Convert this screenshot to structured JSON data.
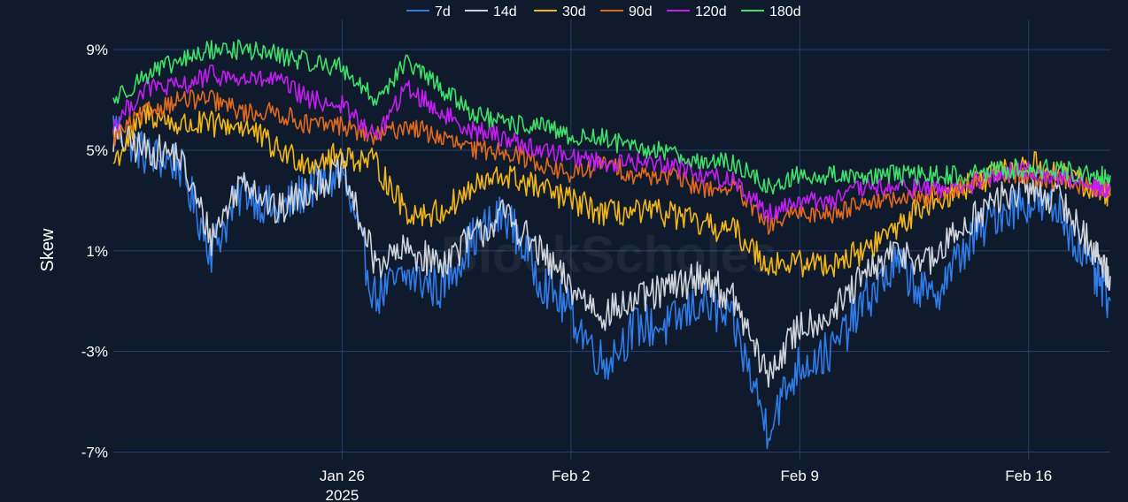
{
  "watermark": "BlockScholes",
  "chart_data": {
    "type": "line",
    "title": "",
    "xlabel": "",
    "ylabel": "Skew",
    "ylim": [
      -7.3,
      10.2
    ],
    "xlim": [
      "2025-01-19",
      "2025-02-18T12:00"
    ],
    "y_ticks": [
      {
        "value": 9,
        "label": "9%"
      },
      {
        "value": 5,
        "label": "5%"
      },
      {
        "value": 1,
        "label": "1%"
      },
      {
        "value": -3,
        "label": "-3%"
      },
      {
        "value": -7,
        "label": "-7%"
      }
    ],
    "x_ticks": [
      {
        "value": "2025-01-26",
        "label": "Jan 26",
        "sublabel": "2025"
      },
      {
        "value": "2025-02-02",
        "label": "Feb 2",
        "sublabel": ""
      },
      {
        "value": "2025-02-09",
        "label": "Feb 9",
        "sublabel": ""
      },
      {
        "value": "2025-02-16",
        "label": "Feb 16",
        "sublabel": ""
      }
    ],
    "grid": true,
    "legend_position": "top-center",
    "series": [
      {
        "name": "7d",
        "color": "#2f7be8",
        "x": [
          "2025-01-19",
          "2025-01-20",
          "2025-01-21",
          "2025-01-22",
          "2025-01-23",
          "2025-01-24",
          "2025-01-25",
          "2025-01-26",
          "2025-01-27",
          "2025-01-28",
          "2025-01-29",
          "2025-01-30",
          "2025-01-31",
          "2025-02-01",
          "2025-02-02",
          "2025-02-03",
          "2025-02-04",
          "2025-02-05",
          "2025-02-06",
          "2025-02-07",
          "2025-02-08",
          "2025-02-09",
          "2025-02-10",
          "2025-02-11",
          "2025-02-12",
          "2025-02-13",
          "2025-02-14",
          "2025-02-15",
          "2025-02-16",
          "2025-02-17",
          "2025-02-18",
          "2025-02-18T12:00"
        ],
        "values": [
          6.0,
          4.8,
          4.5,
          1.0,
          3.5,
          2.5,
          3.5,
          4.0,
          -0.8,
          0.0,
          -0.5,
          1.5,
          2.5,
          0.0,
          -1.5,
          -3.5,
          -2.0,
          -2.0,
          -1.0,
          -2.0,
          -6.0,
          -3.5,
          -3.0,
          -1.0,
          0.5,
          -1.0,
          1.0,
          2.5,
          3.0,
          2.5,
          0.0,
          -1.0
        ]
      },
      {
        "name": "14d",
        "color": "#cfd3da",
        "x": [
          "2025-01-19",
          "2025-01-20",
          "2025-01-21",
          "2025-01-22",
          "2025-01-23",
          "2025-01-24",
          "2025-01-25",
          "2025-01-26",
          "2025-01-27",
          "2025-01-28",
          "2025-01-29",
          "2025-01-30",
          "2025-01-31",
          "2025-02-01",
          "2025-02-02",
          "2025-02-03",
          "2025-02-04",
          "2025-02-05",
          "2025-02-06",
          "2025-02-07",
          "2025-02-08",
          "2025-02-09",
          "2025-02-10",
          "2025-02-11",
          "2025-02-12",
          "2025-02-13",
          "2025-02-14",
          "2025-02-15",
          "2025-02-16",
          "2025-02-17",
          "2025-02-18",
          "2025-02-18T12:00"
        ],
        "values": [
          5.5,
          5.0,
          4.8,
          1.5,
          4.0,
          2.5,
          3.5,
          4.2,
          0.5,
          1.0,
          0.5,
          1.5,
          2.5,
          1.0,
          -0.5,
          -1.5,
          -1.0,
          -0.5,
          0.0,
          -1.0,
          -4.0,
          -2.0,
          -1.5,
          0.0,
          1.0,
          0.5,
          2.0,
          3.0,
          3.5,
          3.0,
          1.0,
          0.0
        ]
      },
      {
        "name": "30d",
        "color": "#f2b617",
        "x": [
          "2025-01-19",
          "2025-01-20",
          "2025-01-21",
          "2025-01-22",
          "2025-01-23",
          "2025-01-24",
          "2025-01-25",
          "2025-01-26",
          "2025-01-27",
          "2025-01-28",
          "2025-01-29",
          "2025-01-30",
          "2025-01-31",
          "2025-02-01",
          "2025-02-02",
          "2025-02-03",
          "2025-02-04",
          "2025-02-05",
          "2025-02-06",
          "2025-02-07",
          "2025-02-08",
          "2025-02-09",
          "2025-02-10",
          "2025-02-11",
          "2025-02-12",
          "2025-02-13",
          "2025-02-14",
          "2025-02-15",
          "2025-02-16",
          "2025-02-17",
          "2025-02-18",
          "2025-02-18T12:00"
        ],
        "values": [
          4.5,
          6.5,
          6.0,
          6.0,
          6.0,
          5.0,
          4.5,
          4.8,
          4.5,
          2.5,
          2.5,
          3.5,
          4.0,
          3.5,
          3.0,
          2.5,
          2.5,
          2.5,
          2.0,
          1.8,
          0.5,
          0.5,
          0.5,
          1.0,
          2.0,
          3.0,
          3.5,
          4.0,
          4.5,
          4.0,
          3.5,
          3.2
        ]
      },
      {
        "name": "90d",
        "color": "#e0691e",
        "x": [
          "2025-01-19",
          "2025-01-20",
          "2025-01-21",
          "2025-01-22",
          "2025-01-23",
          "2025-01-24",
          "2025-01-25",
          "2025-01-26",
          "2025-01-27",
          "2025-01-28",
          "2025-01-29",
          "2025-01-30",
          "2025-01-31",
          "2025-02-01",
          "2025-02-02",
          "2025-02-03",
          "2025-02-04",
          "2025-02-05",
          "2025-02-06",
          "2025-02-07",
          "2025-02-08",
          "2025-02-09",
          "2025-02-10",
          "2025-02-11",
          "2025-02-12",
          "2025-02-13",
          "2025-02-14",
          "2025-02-15",
          "2025-02-16",
          "2025-02-17",
          "2025-02-18",
          "2025-02-18T12:00"
        ],
        "values": [
          5.5,
          6.5,
          7.0,
          7.0,
          6.5,
          6.5,
          6.0,
          6.0,
          5.5,
          6.0,
          5.5,
          5.0,
          5.0,
          4.5,
          4.0,
          4.5,
          4.0,
          4.0,
          3.5,
          3.5,
          2.0,
          2.5,
          2.5,
          3.0,
          3.0,
          3.2,
          3.5,
          4.0,
          4.0,
          3.8,
          3.5,
          3.5
        ]
      },
      {
        "name": "120d",
        "color": "#c21ef2",
        "x": [
          "2025-01-19",
          "2025-01-20",
          "2025-01-21",
          "2025-01-22",
          "2025-01-23",
          "2025-01-24",
          "2025-01-25",
          "2025-01-26",
          "2025-01-27",
          "2025-01-28",
          "2025-01-29",
          "2025-01-30",
          "2025-01-31",
          "2025-02-01",
          "2025-02-02",
          "2025-02-03",
          "2025-02-04",
          "2025-02-05",
          "2025-02-06",
          "2025-02-07",
          "2025-02-08",
          "2025-02-09",
          "2025-02-10",
          "2025-02-11",
          "2025-02-12",
          "2025-02-13",
          "2025-02-14",
          "2025-02-15",
          "2025-02-16",
          "2025-02-17",
          "2025-02-18",
          "2025-02-18T12:00"
        ],
        "values": [
          6.0,
          7.5,
          7.5,
          8.0,
          7.8,
          7.8,
          7.0,
          6.8,
          5.5,
          7.5,
          6.5,
          5.8,
          5.5,
          5.0,
          4.8,
          4.5,
          4.5,
          4.5,
          4.0,
          3.8,
          2.5,
          3.0,
          3.0,
          3.5,
          3.5,
          3.5,
          3.5,
          4.0,
          4.2,
          4.0,
          3.5,
          3.5
        ]
      },
      {
        "name": "180d",
        "color": "#3ee06a",
        "x": [
          "2025-01-19",
          "2025-01-20",
          "2025-01-21",
          "2025-01-22",
          "2025-01-23",
          "2025-01-24",
          "2025-01-25",
          "2025-01-26",
          "2025-01-27",
          "2025-01-28",
          "2025-01-29",
          "2025-01-30",
          "2025-01-31",
          "2025-02-01",
          "2025-02-02",
          "2025-02-03",
          "2025-02-04",
          "2025-02-05",
          "2025-02-06",
          "2025-02-07",
          "2025-02-08",
          "2025-02-09",
          "2025-02-10",
          "2025-02-11",
          "2025-02-12",
          "2025-02-13",
          "2025-02-14",
          "2025-02-15",
          "2025-02-16",
          "2025-02-17",
          "2025-02-18",
          "2025-02-18T12:00"
        ],
        "values": [
          7.0,
          8.0,
          8.5,
          9.0,
          9.0,
          8.8,
          8.5,
          8.3,
          7.0,
          8.5,
          7.5,
          6.5,
          6.0,
          6.0,
          5.5,
          5.5,
          5.0,
          5.0,
          4.5,
          4.5,
          3.5,
          4.0,
          4.0,
          4.0,
          4.0,
          4.0,
          4.0,
          4.2,
          4.3,
          4.2,
          4.0,
          4.0
        ]
      }
    ]
  }
}
